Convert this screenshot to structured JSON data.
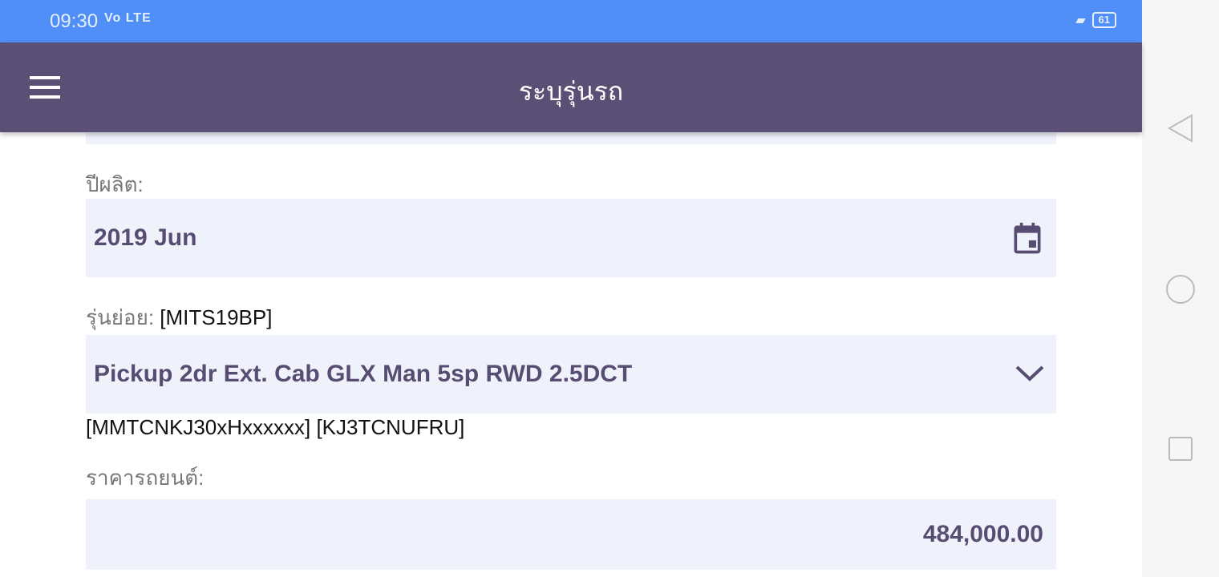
{
  "status_bar": {
    "time": "09:30",
    "network": "Vo LTE",
    "battery": "61"
  },
  "app_bar": {
    "title": "ระบุรุ่นรถ",
    "menu_icon": "hamburger-icon"
  },
  "form": {
    "year_label": "ปีผลิต:",
    "year_value": "2019 Jun",
    "submodel_label": "รุ่นย่อย:",
    "submodel_code": "[MITS19BP]",
    "submodel_value": "Pickup 2dr Ext. Cab GLX Man 5sp RWD 2.5DCT",
    "codes": "[MMTCNKJ30xHxxxxxx] [KJ3TCNUFRU]",
    "price_label": "ราคารถยนต์:",
    "price_value": "484,000.00"
  },
  "colors": {
    "status": "#4f8ff7",
    "appbar": "#5a4f74",
    "field_bg": "#eff2fb",
    "accent": "#574d72"
  }
}
